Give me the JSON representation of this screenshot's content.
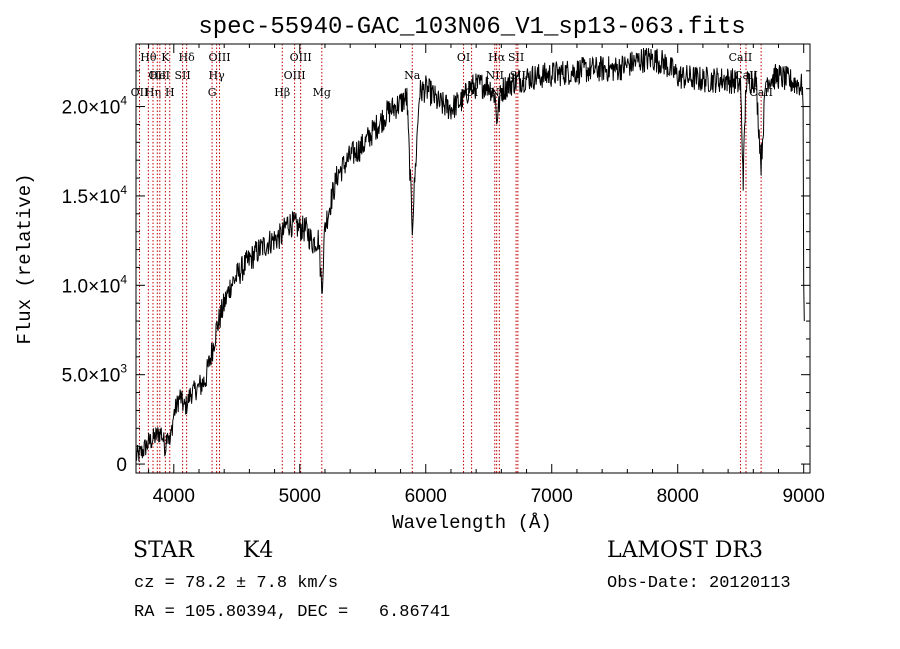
{
  "chart_data": {
    "type": "line",
    "title": "spec-55940-GAC_103N06_V1_sp13-063.fits",
    "xlabel": "Wavelength (Å)",
    "ylabel": "Flux (relative)",
    "xlim": [
      3700,
      9050
    ],
    "ylim": [
      -500,
      23500
    ],
    "x_ticks": [
      4000,
      5000,
      6000,
      7000,
      8000,
      9000
    ],
    "y_ticks": [
      {
        "value": 0,
        "label": "0"
      },
      {
        "value": 5000,
        "label": "5.0×10",
        "exp": "3"
      },
      {
        "value": 10000,
        "label": "1.0×10",
        "exp": "4"
      },
      {
        "value": 15000,
        "label": "1.5×10",
        "exp": "4"
      },
      {
        "value": 20000,
        "label": "2.0×10",
        "exp": "4"
      }
    ],
    "grid": false,
    "series": [
      {
        "name": "flux",
        "x": [
          3700,
          3750,
          3800,
          3850,
          3900,
          3933,
          3950,
          3968,
          4000,
          4050,
          4080,
          4102,
          4130,
          4200,
          4250,
          4300,
          4340,
          4380,
          4450,
          4550,
          4650,
          4750,
          4861,
          4900,
          4950,
          5000,
          5050,
          5100,
          5150,
          5175,
          5200,
          5250,
          5300,
          5400,
          5500,
          5600,
          5700,
          5800,
          5850,
          5893,
          5950,
          6000,
          6050,
          6100,
          6200,
          6300,
          6350,
          6450,
          6500,
          6550,
          6563,
          6600,
          6650,
          6700,
          6800,
          6900,
          7000,
          7200,
          7400,
          7500,
          7600,
          7700,
          7800,
          7900,
          8000,
          8200,
          8400,
          8450,
          8498,
          8520,
          8542,
          8580,
          8620,
          8662,
          8700,
          8800,
          8900,
          8950,
          8990,
          8995,
          9000,
          9005
        ],
        "y": [
          400,
          700,
          1200,
          1500,
          1800,
          900,
          2000,
          1100,
          2800,
          3800,
          3200,
          3300,
          3900,
          4300,
          4700,
          6200,
          7600,
          8500,
          10000,
          11000,
          11800,
          12400,
          12800,
          13500,
          13400,
          13200,
          13100,
          12400,
          12600,
          9700,
          13300,
          14800,
          16200,
          17200,
          17800,
          18800,
          19700,
          20200,
          20500,
          13300,
          20800,
          21000,
          20700,
          20200,
          19900,
          20400,
          21100,
          21200,
          21200,
          20600,
          19300,
          20900,
          21200,
          21400,
          21600,
          21700,
          21800,
          22000,
          22100,
          22100,
          22300,
          22600,
          22700,
          22400,
          21700,
          21500,
          21500,
          21400,
          21200,
          16000,
          21300,
          21500,
          21500,
          16800,
          21500,
          21700,
          21400,
          21300,
          21100,
          20000,
          10100,
          8000
        ]
      }
    ],
    "lines": [
      {
        "wave": 3728,
        "label": "OII",
        "row": 2
      },
      {
        "wave": 3798,
        "label": "Hθ",
        "row": 0
      },
      {
        "wave": 3835,
        "label": "Hη",
        "row": 2
      },
      {
        "wave": 3869,
        "label": "OII",
        "row": 1
      },
      {
        "wave": 3889,
        "label": "HeI",
        "row": 1
      },
      {
        "wave": 3933,
        "label": "K",
        "row": 0
      },
      {
        "wave": 3968,
        "label": "H",
        "row": 2
      },
      {
        "wave": 4070,
        "label": "SII",
        "row": 1
      },
      {
        "wave": 4102,
        "label": "Hδ",
        "row": 0
      },
      {
        "wave": 4304,
        "label": "G",
        "row": 2
      },
      {
        "wave": 4340,
        "label": "Hγ",
        "row": 1
      },
      {
        "wave": 4363,
        "label": "OIII",
        "row": 0
      },
      {
        "wave": 4861,
        "label": "Hβ",
        "row": 2
      },
      {
        "wave": 4959,
        "label": "OIII",
        "row": 1
      },
      {
        "wave": 5007,
        "label": "OIII",
        "row": 0
      },
      {
        "wave": 5175,
        "label": "Mg",
        "row": 2
      },
      {
        "wave": 5893,
        "label": "Na",
        "row": 1
      },
      {
        "wave": 6300,
        "label": "OI",
        "row": 0
      },
      {
        "wave": 6364,
        "label": "OI",
        "row": 2
      },
      {
        "wave": 6548,
        "label": "NII",
        "row": 1
      },
      {
        "wave": 6563,
        "label": "Hα",
        "row": 0
      },
      {
        "wave": 6584,
        "label": "NII",
        "row": 2
      },
      {
        "wave": 6717,
        "label": "SII",
        "row": 0
      },
      {
        "wave": 6731,
        "label": "SII",
        "row": 1
      },
      {
        "wave": 8498,
        "label": "CaII",
        "row": 0
      },
      {
        "wave": 8542,
        "label": "CaII",
        "row": 1
      },
      {
        "wave": 8662,
        "label": "CaII",
        "row": 2
      }
    ]
  },
  "info": {
    "object_class": "STAR",
    "subclass": "K4",
    "survey": "LAMOST DR3",
    "velocity": "cz = 78.2 ± 7.8 km/s",
    "obs_date": "Obs-Date: 20120113",
    "coords": "RA = 105.80394, DEC =   6.86741"
  }
}
